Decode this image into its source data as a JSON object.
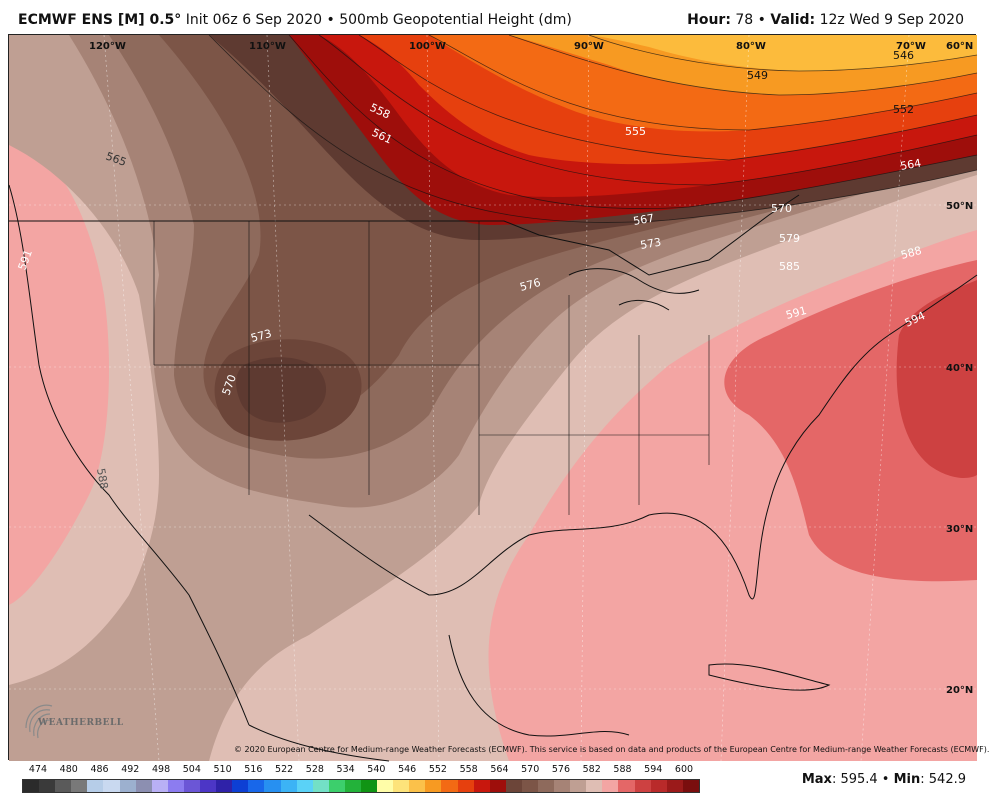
{
  "header": {
    "model": "ECMWF ENS [M] 0.5",
    "degree": "°",
    "init": "Init 06z 6 Sep 2020",
    "sep": " • ",
    "product": "500mb Geopotential Height (dm)",
    "hour_label": "Hour:",
    "hour_value": "78",
    "valid_label": "Valid:",
    "valid_value": "12z Wed 9 Sep 2020"
  },
  "map": {
    "lon_labels": [
      "120°W",
      "110°W",
      "100°W",
      "90°W",
      "80°W",
      "70°W",
      "60°N"
    ],
    "lat_labels": [
      "50°N",
      "40°N",
      "30°N",
      "20°N"
    ],
    "contour_labels": [
      "558",
      "561",
      "565",
      "549",
      "546",
      "552",
      "555",
      "564",
      "567",
      "570",
      "573",
      "576",
      "579",
      "585",
      "588",
      "591",
      "594",
      "573",
      "570",
      "591",
      "588"
    ],
    "colors": {
      "c549": "#fcbb3c",
      "c552": "#f79a22",
      "c555": "#f36a14",
      "c558": "#e6400e",
      "c561": "#c8170d",
      "c564": "#9e0e0b",
      "dark1": "#5e3a31",
      "dark2": "#6c4539",
      "dark3": "#7c5547",
      "mid1": "#8e6a5c",
      "mid2": "#a68376",
      "light1": "#bf9f93",
      "light2": "#dfbeb4",
      "pink1": "#f3a5a3",
      "pink2": "#e46767",
      "red594": "#cd4141"
    },
    "copyright": "© 2020 European Centre for Medium-range Weather Forecasts (ECMWF). This service is based on data and products of the European Centre for Medium-range Weather Forecasts (ECMWF).",
    "logo_text": "WEATHERBELL"
  },
  "colorbar": {
    "ticks": [
      "474",
      "480",
      "486",
      "492",
      "498",
      "504",
      "510",
      "516",
      "522",
      "528",
      "534",
      "540",
      "546",
      "552",
      "558",
      "564",
      "570",
      "576",
      "582",
      "588",
      "594",
      "600"
    ],
    "colors": [
      "#2b2b2b",
      "#3a3a3a",
      "#5a5a5a",
      "#797979",
      "#b6cde8",
      "#c9d9f0",
      "#9cb0cf",
      "#8c8fb1",
      "#b9b0f5",
      "#8c7cf0",
      "#6b56d6",
      "#4c36c6",
      "#2f22a8",
      "#0d3fd4",
      "#1867ea",
      "#2790f1",
      "#3cb3f5",
      "#5ad2f7",
      "#73e0c6",
      "#3ccf6c",
      "#23b23a",
      "#109414",
      "#fffda8",
      "#fde37a",
      "#fbc14a",
      "#f79a22",
      "#f36a14",
      "#e6400e",
      "#c8170d",
      "#9e0e0b",
      "#6c4539",
      "#7c5547",
      "#8e6a5c",
      "#a68376",
      "#bf9f93",
      "#dfbeb4",
      "#f3a5a3",
      "#e46767",
      "#cd4141",
      "#b92a2a",
      "#9b1a1a",
      "#7a0e0e"
    ]
  },
  "stats": {
    "max_label": "Max",
    "max_value": ": 595.4",
    "sep": " • ",
    "min_label": "Min",
    "min_value": ": 542.9"
  }
}
